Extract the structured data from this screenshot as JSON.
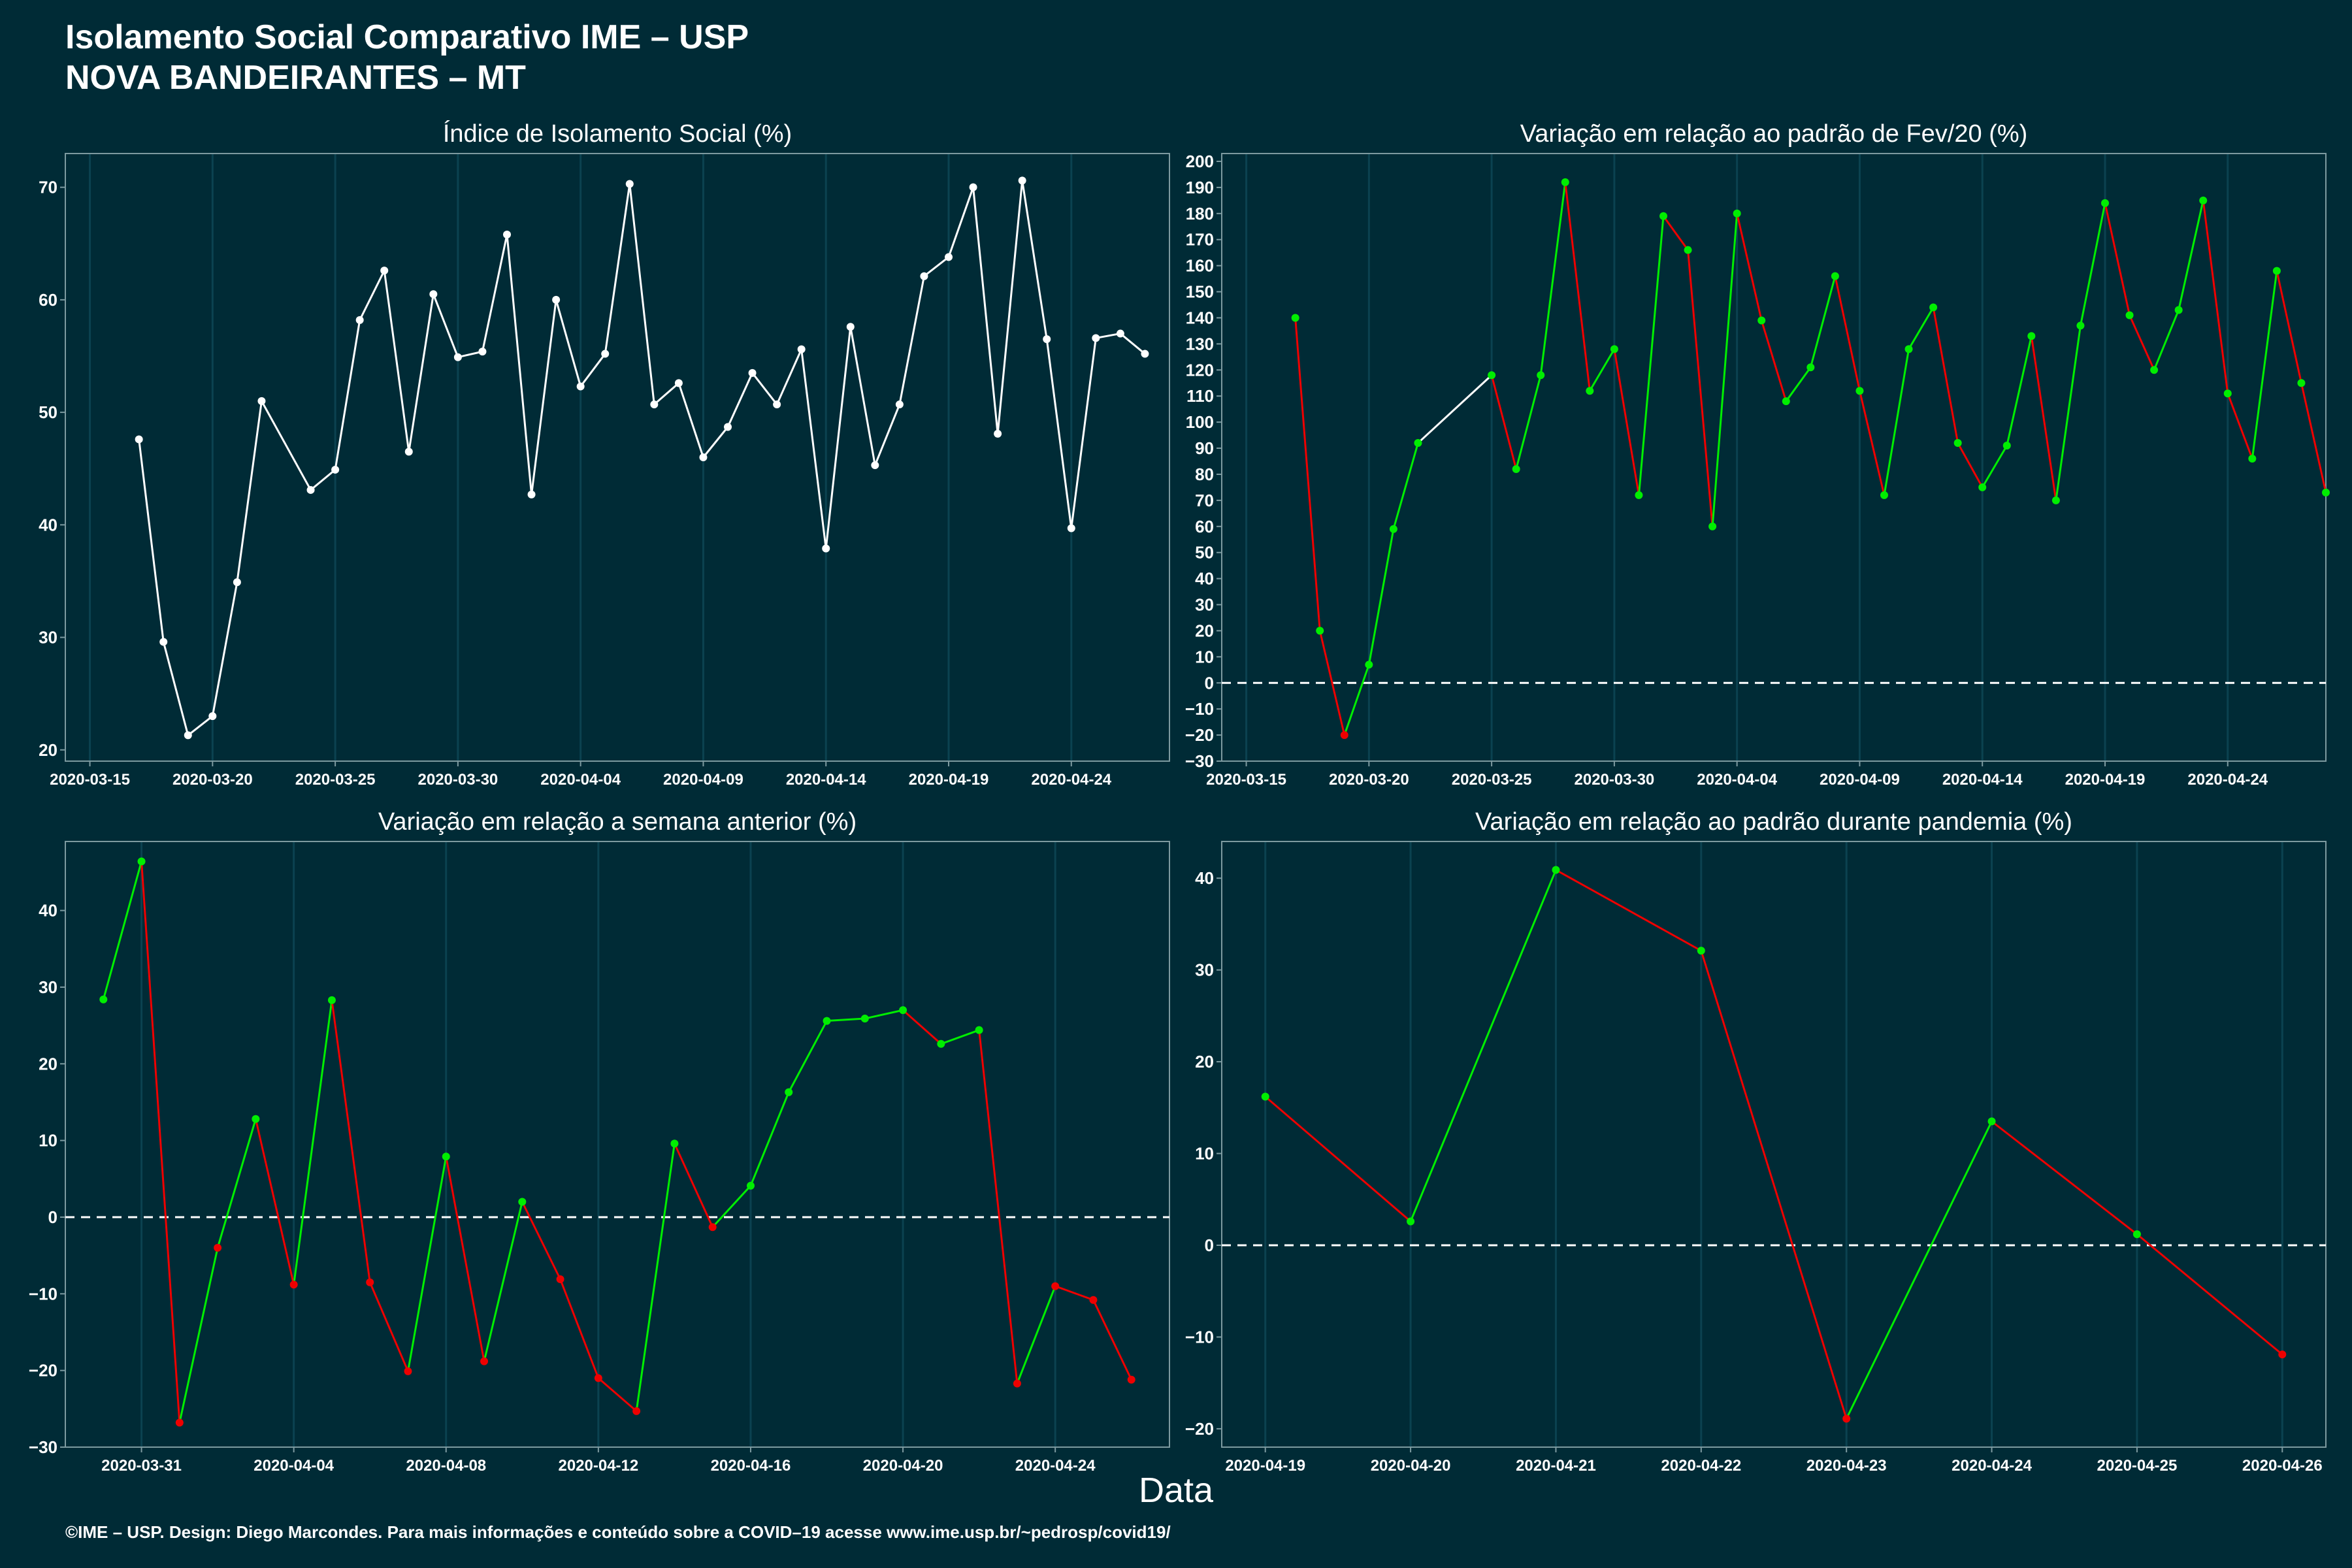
{
  "header": {
    "title_line1": "Isolamento Social Comparativo IME – USP",
    "title_line2": "NOVA BANDEIRANTES – MT"
  },
  "xlabel": "Data",
  "footer": "©IME – USP. Design: Diego Marcondes. Para mais informações e conteúdo sobre a COVID–19 acesse www.ime.usp.br/~pedrosp/covid19/",
  "colors": {
    "background": "#002b36",
    "grid": "#0b4250",
    "axis": "#7d9aa0",
    "white_line": "#ffffff",
    "positive": "#00ee00",
    "negative": "#ee0000",
    "zero_line": "#ffffff"
  },
  "chart_data": [
    {
      "type": "line",
      "title": "Índice de Isolamento Social (%)",
      "xlabel": "",
      "ylabel": "",
      "x_type": "date",
      "xlim": [
        "2020-03-14",
        "2020-04-28"
      ],
      "ylim": [
        19,
        73
      ],
      "x_ticks": [
        "2020-03-15",
        "2020-03-20",
        "2020-03-25",
        "2020-03-30",
        "2020-04-04",
        "2020-04-09",
        "2020-04-14",
        "2020-04-19",
        "2020-04-24"
      ],
      "y_ticks": [
        20,
        30,
        40,
        50,
        60,
        70
      ],
      "color_mode": "white",
      "grid": true,
      "x": [
        "2020-03-17",
        "2020-03-18",
        "2020-03-19",
        "2020-03-20",
        "2020-03-21",
        "2020-03-22",
        "2020-03-24",
        "2020-03-25",
        "2020-03-26",
        "2020-03-27",
        "2020-03-28",
        "2020-03-29",
        "2020-03-30",
        "2020-03-31",
        "2020-04-01",
        "2020-04-02",
        "2020-04-03",
        "2020-04-04",
        "2020-04-05",
        "2020-04-06",
        "2020-04-07",
        "2020-04-08",
        "2020-04-09",
        "2020-04-10",
        "2020-04-11",
        "2020-04-12",
        "2020-04-13",
        "2020-04-14",
        "2020-04-15",
        "2020-04-16",
        "2020-04-17",
        "2020-04-18",
        "2020-04-19",
        "2020-04-20",
        "2020-04-21",
        "2020-04-22",
        "2020-04-23",
        "2020-04-24",
        "2020-04-25",
        "2020-04-26",
        "2020-04-27"
      ],
      "y": [
        47.6,
        29.6,
        21.3,
        23.0,
        34.9,
        51.0,
        43.1,
        44.9,
        58.2,
        62.6,
        46.5,
        60.5,
        54.9,
        55.4,
        65.8,
        42.7,
        60.0,
        52.3,
        55.2,
        70.3,
        50.7,
        52.6,
        46.0,
        48.7,
        53.5,
        50.7,
        55.6,
        37.9,
        57.6,
        45.3,
        50.7,
        62.1,
        63.8,
        70.0,
        48.1,
        70.6,
        56.5,
        39.7,
        56.6,
        57.0,
        55.2
      ]
    },
    {
      "type": "line",
      "title": "Variação em relação ao padrão de Fev/20 (%)",
      "xlabel": "",
      "ylabel": "",
      "x_type": "date",
      "xlim": [
        "2020-03-14",
        "2020-04-28"
      ],
      "ylim": [
        -30,
        203
      ],
      "x_ticks": [
        "2020-03-15",
        "2020-03-20",
        "2020-03-25",
        "2020-03-30",
        "2020-04-04",
        "2020-04-09",
        "2020-04-14",
        "2020-04-19",
        "2020-04-24"
      ],
      "y_ticks": [
        -30,
        -20,
        -10,
        0,
        10,
        20,
        30,
        40,
        50,
        60,
        70,
        80,
        90,
        100,
        110,
        120,
        130,
        140,
        150,
        160,
        170,
        180,
        190,
        200
      ],
      "color_mode": "variation",
      "zero_line": true,
      "grid": true,
      "x": [
        "2020-03-17",
        "2020-03-18",
        "2020-03-19",
        "2020-03-20",
        "2020-03-21",
        "2020-03-22",
        "2020-03-23",
        "2020-03-25",
        "2020-03-26",
        "2020-03-27",
        "2020-03-28",
        "2020-03-29",
        "2020-03-30",
        "2020-03-31",
        "2020-04-01",
        "2020-04-02",
        "2020-04-03",
        "2020-04-04",
        "2020-04-05",
        "2020-04-06",
        "2020-04-07",
        "2020-04-08",
        "2020-04-09",
        "2020-04-10",
        "2020-04-11",
        "2020-04-12",
        "2020-04-13",
        "2020-04-14",
        "2020-04-15",
        "2020-04-16",
        "2020-04-17",
        "2020-04-18",
        "2020-04-19",
        "2020-04-20",
        "2020-04-21",
        "2020-04-22",
        "2020-04-23",
        "2020-04-24",
        "2020-04-25",
        "2020-04-26",
        "2020-04-27",
        "2020-04-28"
      ],
      "y": [
        140,
        20,
        -20,
        7,
        59,
        92,
        null,
        118,
        82,
        118,
        192,
        112,
        128,
        72,
        179,
        166,
        60,
        180,
        139,
        108,
        121,
        156,
        112,
        72,
        128,
        144,
        92,
        75,
        91,
        133,
        70,
        137,
        184,
        141,
        120,
        143,
        185,
        111,
        86,
        158,
        115,
        73
      ]
    },
    {
      "type": "line",
      "title": "Variação em relação a semana anterior (%)",
      "xlabel": "",
      "ylabel": "",
      "x_type": "date",
      "xlim": [
        "2020-03-29",
        "2020-04-27"
      ],
      "ylim": [
        -30,
        49
      ],
      "x_ticks": [
        "2020-03-31",
        "2020-04-04",
        "2020-04-08",
        "2020-04-12",
        "2020-04-16",
        "2020-04-20",
        "2020-04-24"
      ],
      "y_ticks": [
        -30,
        -20,
        -10,
        0,
        10,
        20,
        30,
        40
      ],
      "color_mode": "variation",
      "zero_line": true,
      "grid": true,
      "x": [
        "2020-03-30",
        "2020-03-31",
        "2020-04-01",
        "2020-04-02",
        "2020-04-03",
        "2020-04-04",
        "2020-04-05",
        "2020-04-06",
        "2020-04-07",
        "2020-04-08",
        "2020-04-09",
        "2020-04-10",
        "2020-04-11",
        "2020-04-12",
        "2020-04-13",
        "2020-04-14",
        "2020-04-15",
        "2020-04-16",
        "2020-04-17",
        "2020-04-18",
        "2020-04-19",
        "2020-04-20",
        "2020-04-21",
        "2020-04-22",
        "2020-04-23",
        "2020-04-24",
        "2020-04-25",
        "2020-04-26"
      ],
      "y": [
        28.4,
        46.4,
        -26.8,
        -4.0,
        12.8,
        -8.8,
        28.3,
        -8.5,
        -20.1,
        7.9,
        -18.8,
        2.0,
        -8.1,
        -21.0,
        -25.3,
        9.6,
        -1.3,
        4.1,
        16.3,
        25.6,
        25.9,
        27.0,
        22.6,
        24.4,
        -21.7,
        -9.0,
        -10.8,
        -21.2
      ]
    },
    {
      "type": "line",
      "title": "Variação em relação ao padrão durante pandemia (%)",
      "xlabel": "",
      "ylabel": "",
      "x_type": "date",
      "xlim": [
        "2020-04-18.7",
        "2020-04-26.3"
      ],
      "ylim": [
        -22,
        44
      ],
      "x_ticks": [
        "2020-04-19",
        "2020-04-20",
        "2020-04-21",
        "2020-04-22",
        "2020-04-23",
        "2020-04-24",
        "2020-04-25",
        "2020-04-26"
      ],
      "y_ticks": [
        -20,
        -10,
        0,
        10,
        20,
        30,
        40
      ],
      "color_mode": "variation",
      "zero_line": true,
      "grid": true,
      "x": [
        "2020-04-19",
        "2020-04-20",
        "2020-04-21",
        "2020-04-22",
        "2020-04-23",
        "2020-04-24",
        "2020-04-25",
        "2020-04-26"
      ],
      "y": [
        16.2,
        2.6,
        40.9,
        32.1,
        -18.9,
        13.5,
        1.2,
        -11.9
      ]
    }
  ]
}
